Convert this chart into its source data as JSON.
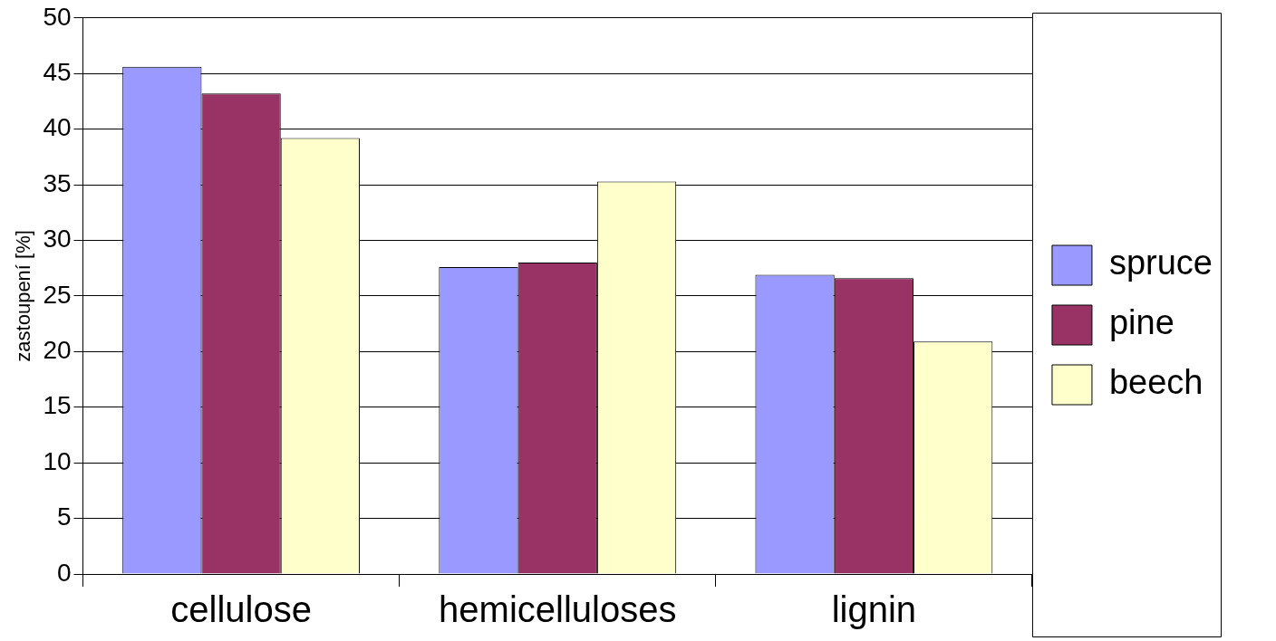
{
  "chart_data": {
    "type": "bar",
    "ylabel": "zastoupení [%]",
    "categories": [
      "cellulose",
      "hemicelluloses",
      "lignin"
    ],
    "series": [
      {
        "name": "spruce",
        "color": "#9999ff",
        "values": [
          45.6,
          27.6,
          26.9
        ]
      },
      {
        "name": "pine",
        "color": "#993366",
        "values": [
          43.2,
          28.0,
          26.6
        ]
      },
      {
        "name": "beech",
        "color": "#ffffcc",
        "values": [
          39.2,
          35.3,
          20.9
        ]
      }
    ],
    "ylim": [
      0,
      50
    ],
    "yticks": [
      0,
      5,
      10,
      15,
      20,
      25,
      30,
      35,
      40,
      45,
      50
    ],
    "grid": "y",
    "legend": "right"
  }
}
